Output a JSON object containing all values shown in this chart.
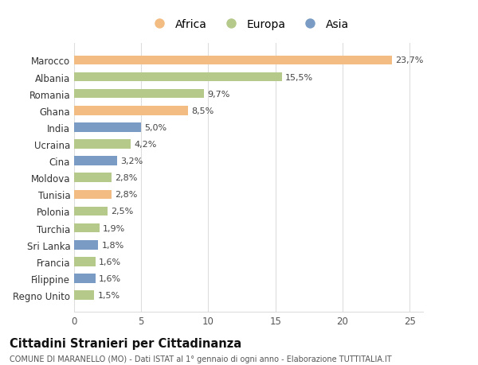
{
  "categories": [
    "Marocco",
    "Albania",
    "Romania",
    "Ghana",
    "India",
    "Ucraina",
    "Cina",
    "Moldova",
    "Tunisia",
    "Polonia",
    "Turchia",
    "Sri Lanka",
    "Francia",
    "Filippine",
    "Regno Unito"
  ],
  "values": [
    23.7,
    15.5,
    9.7,
    8.5,
    5.0,
    4.2,
    3.2,
    2.8,
    2.8,
    2.5,
    1.9,
    1.8,
    1.6,
    1.6,
    1.5
  ],
  "labels": [
    "23,7%",
    "15,5%",
    "9,7%",
    "8,5%",
    "5,0%",
    "4,2%",
    "3,2%",
    "2,8%",
    "2,8%",
    "2,5%",
    "1,9%",
    "1,8%",
    "1,6%",
    "1,6%",
    "1,5%"
  ],
  "continents": [
    "Africa",
    "Europa",
    "Europa",
    "Africa",
    "Asia",
    "Europa",
    "Asia",
    "Europa",
    "Africa",
    "Europa",
    "Europa",
    "Asia",
    "Europa",
    "Asia",
    "Europa"
  ],
  "colors": {
    "Africa": "#F2BC82",
    "Europa": "#B5C98A",
    "Asia": "#7A9CC4"
  },
  "legend_labels": [
    "Africa",
    "Europa",
    "Asia"
  ],
  "title": "Cittadini Stranieri per Cittadinanza",
  "subtitle": "COMUNE DI MARANELLO (MO) - Dati ISTAT al 1° gennaio di ogni anno - Elaborazione TUTTITALIA.IT",
  "xlim": [
    0,
    26
  ],
  "xticks": [
    0,
    5,
    10,
    15,
    20,
    25
  ],
  "background_color": "#ffffff",
  "grid_color": "#dddddd"
}
